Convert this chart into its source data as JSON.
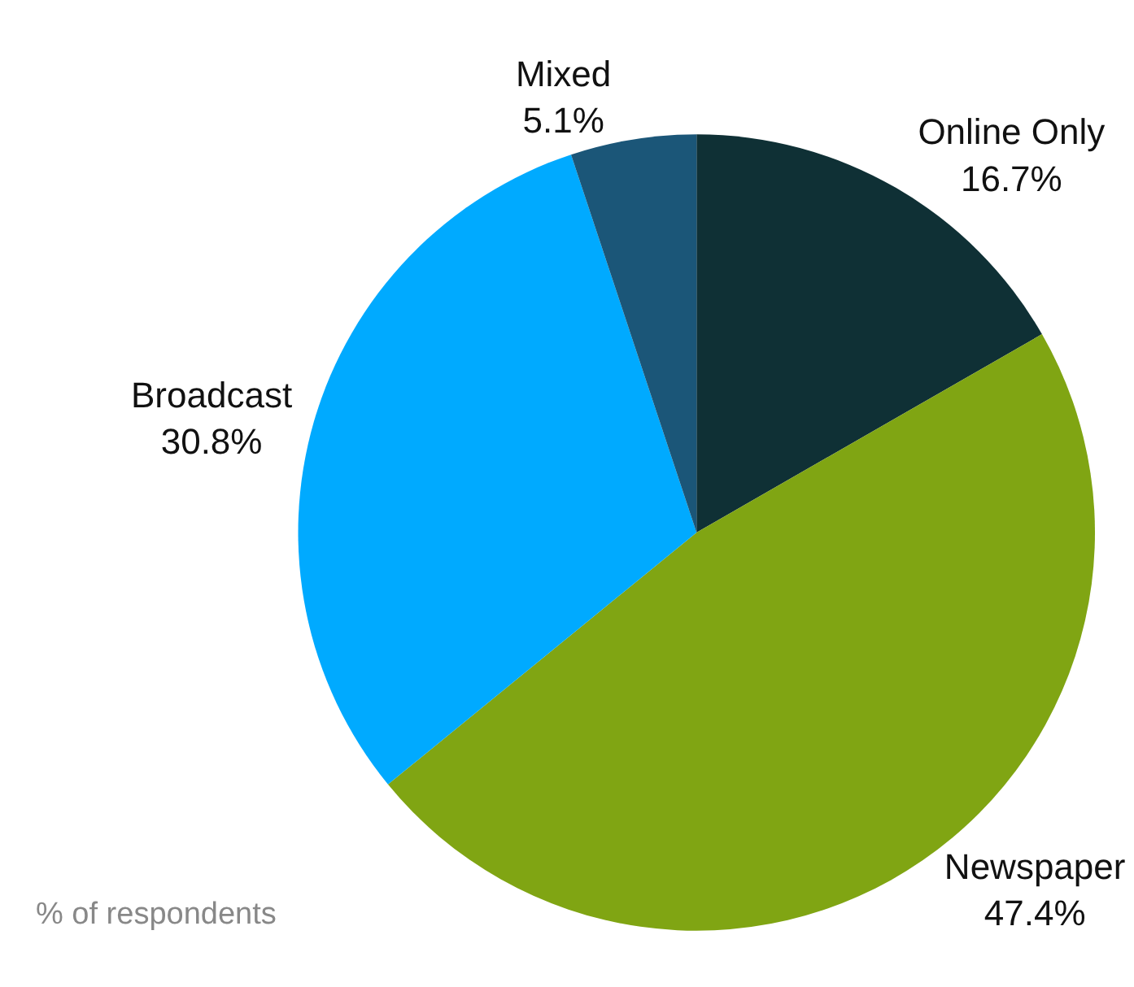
{
  "chart_data": {
    "type": "pie",
    "categories": [
      "Online Only",
      "Newspaper",
      "Broadcast",
      "Mixed"
    ],
    "values": [
      16.7,
      47.4,
      30.8,
      5.1
    ],
    "value_labels": [
      "16.7%",
      "47.4%",
      "30.8%",
      "5.1%"
    ],
    "colors": [
      "#0f3035",
      "#80a513",
      "#00aaff",
      "#1b5678"
    ],
    "annotations": [
      "% of respondents"
    ],
    "legend": false
  }
}
